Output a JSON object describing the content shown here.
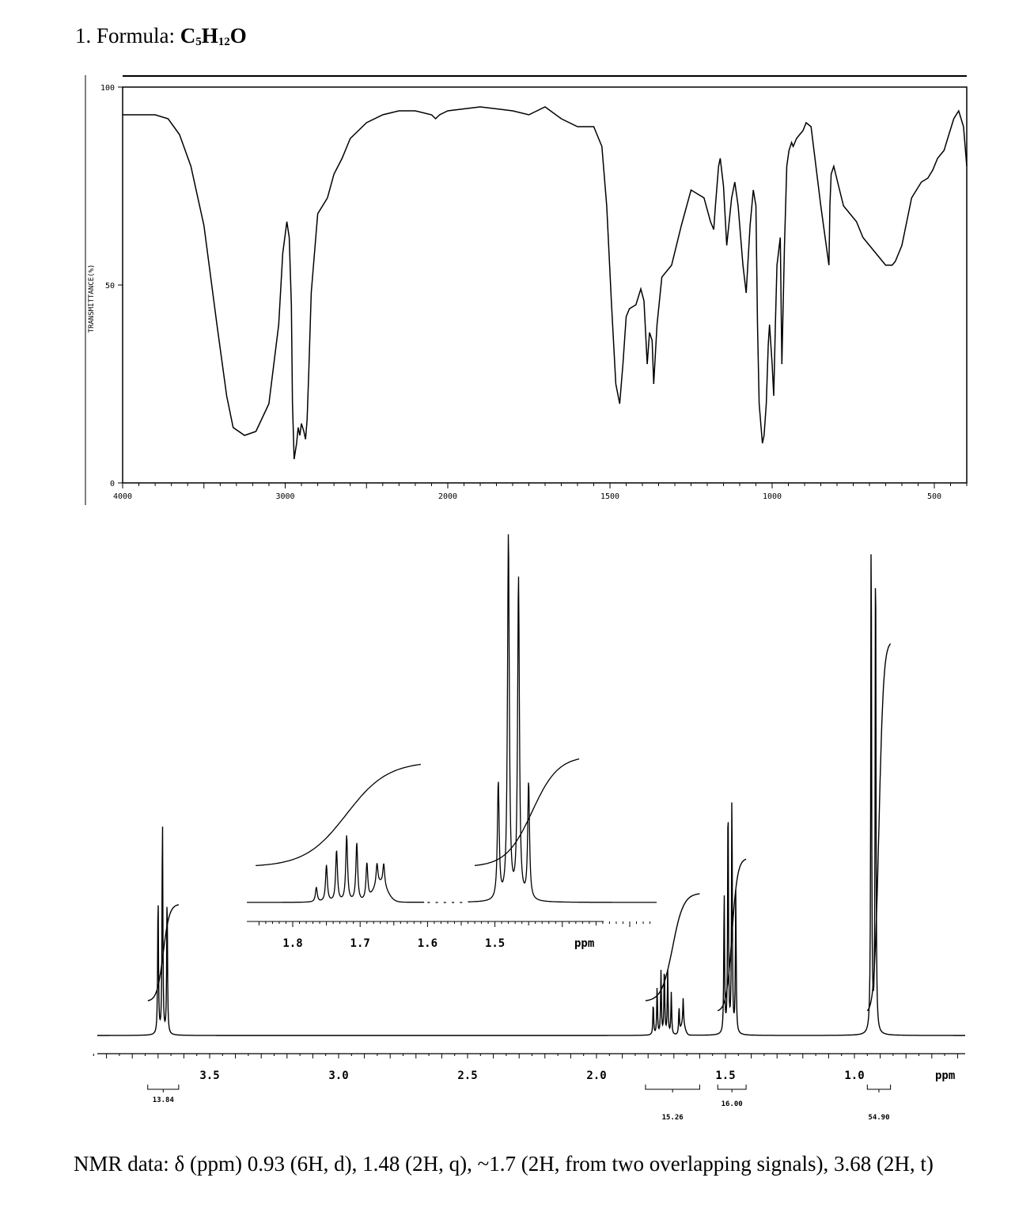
{
  "problem": {
    "title_prefix": "1. Formula: ",
    "formula": {
      "c": "C",
      "c_sub": "5",
      "h": "H",
      "h_sub": "12",
      "o": "O"
    }
  },
  "chart_data": [
    {
      "type": "line",
      "ylabel": "TRANSMITTANCE(%)",
      "xlabel": "",
      "x_direction": "decreasing",
      "xlim": [
        4000,
        400
      ],
      "ylim": [
        0,
        100
      ],
      "x_ticks": [
        4000,
        3000,
        2000,
        1500,
        1000,
        500
      ],
      "y_ticks": [
        100,
        50,
        0
      ],
      "x_tick_labels": [
        "4000",
        "3000",
        "2000",
        "1500",
        "1000",
        "500"
      ],
      "y_tick_labels": [
        "100",
        "50",
        "0"
      ],
      "series": [
        {
          "x": [
            4000,
            3900,
            3800,
            3720,
            3650,
            3580,
            3500,
            3420,
            3360,
            3320,
            3250,
            3180,
            3100,
            3040,
            3015,
            2990,
            2975,
            2962,
            2955,
            2945,
            2930,
            2920,
            2910,
            2900,
            2885,
            2875,
            2865,
            2855,
            2840,
            2800,
            2740,
            2700,
            2650,
            2600,
            2500,
            2400,
            2300,
            2200,
            2100,
            2075,
            2050,
            2000,
            1900,
            1800,
            1750,
            1700,
            1650,
            1600,
            1550,
            1525,
            1510,
            1495,
            1482,
            1470,
            1460,
            1450,
            1440,
            1420,
            1405,
            1395,
            1385,
            1378,
            1370,
            1365,
            1355,
            1340,
            1310,
            1280,
            1250,
            1230,
            1210,
            1190,
            1180,
            1175,
            1165,
            1160,
            1150,
            1140,
            1125,
            1115,
            1105,
            1090,
            1080,
            1068,
            1058,
            1050,
            1045,
            1040,
            1030,
            1025,
            1018,
            1012,
            1008,
            1000,
            995,
            990,
            985,
            975,
            970,
            962,
            955,
            948,
            940,
            935,
            925,
            915,
            905,
            895,
            880,
            850,
            825,
            822,
            818,
            810,
            795,
            780,
            760,
            740,
            720,
            700,
            680,
            660,
            650,
            640,
            630,
            620,
            600,
            570,
            540,
            520,
            505,
            490,
            470,
            455,
            440,
            425,
            410,
            400
          ],
          "y": [
            93,
            93,
            93,
            92,
            88,
            80,
            65,
            40,
            22,
            14,
            12,
            13,
            20,
            40,
            58,
            66,
            62,
            45,
            20,
            6,
            10,
            14,
            12,
            15,
            13,
            11,
            16,
            28,
            48,
            68,
            72,
            78,
            82,
            87,
            91,
            93,
            94,
            94,
            93,
            92,
            93,
            94,
            95,
            94,
            93,
            95,
            92,
            90,
            90,
            85,
            70,
            45,
            25,
            20,
            30,
            42,
            44,
            45,
            49,
            46,
            30,
            38,
            36,
            25,
            40,
            52,
            55,
            65,
            74,
            73,
            72,
            66,
            64,
            70,
            80,
            82,
            75,
            60,
            72,
            76,
            70,
            55,
            48,
            65,
            74,
            70,
            40,
            20,
            10,
            12,
            20,
            35,
            40,
            30,
            22,
            40,
            55,
            62,
            30,
            60,
            80,
            84,
            86,
            85,
            87,
            88,
            89,
            91,
            90,
            70,
            55,
            70,
            78,
            80,
            75,
            70,
            68,
            66,
            62,
            60,
            58,
            56,
            55,
            55,
            55,
            56,
            60,
            72,
            76,
            77,
            79,
            82,
            84,
            88,
            92,
            94,
            90,
            80
          ]
        }
      ]
    },
    {
      "type": "line",
      "xlabel": "ppm",
      "ylabel": "",
      "x_direction": "decreasing",
      "xlim": [
        3.95,
        0.6
      ],
      "x_ticks": [
        3.5,
        3.0,
        2.5,
        2.0,
        1.5,
        1.0
      ],
      "x_tick_labels": [
        "3.5",
        "3.0",
        "2.5",
        "2.0",
        "1.5",
        "1.0"
      ],
      "peaks": [
        {
          "ppm": 3.7,
          "rel_height": 0.27
        },
        {
          "ppm": 3.683,
          "rel_height": 0.42
        },
        {
          "ppm": 3.665,
          "rel_height": 0.27
        },
        {
          "ppm": 1.78,
          "rel_height": 0.06
        },
        {
          "ppm": 1.765,
          "rel_height": 0.09
        },
        {
          "ppm": 1.75,
          "rel_height": 0.12
        },
        {
          "ppm": 1.737,
          "rel_height": 0.13
        },
        {
          "ppm": 1.724,
          "rel_height": 0.12
        },
        {
          "ppm": 1.71,
          "rel_height": 0.08
        },
        {
          "ppm": 1.68,
          "rel_height": 0.05
        },
        {
          "ppm": 1.664,
          "rel_height": 0.05
        },
        {
          "ppm": 1.505,
          "rel_height": 0.27
        },
        {
          "ppm": 1.49,
          "rel_height": 0.46
        },
        {
          "ppm": 1.475,
          "rel_height": 0.46
        },
        {
          "ppm": 1.46,
          "rel_height": 0.27
        },
        {
          "ppm": 0.935,
          "rel_height": 1.0
        },
        {
          "ppm": 0.918,
          "rel_height": 0.97
        }
      ],
      "integrals": [
        {
          "label": "13.84",
          "from": 3.74,
          "to": 3.62
        },
        {
          "label": "15.26",
          "from": 1.81,
          "to": 1.6
        },
        {
          "label": "16.00",
          "from": 1.53,
          "to": 1.42
        },
        {
          "label": "54.90",
          "from": 0.95,
          "to": 0.86
        }
      ],
      "inset": {
        "xlim": [
          1.85,
          1.26
        ],
        "x_ticks": [
          1.8,
          1.7,
          1.6,
          1.5
        ],
        "x_tick_labels": [
          "1.8",
          "1.7",
          "1.6",
          "1.5"
        ],
        "xlabel": "ppm",
        "peaks": [
          {
            "ppm": 1.765,
            "rel_height": 0.04
          },
          {
            "ppm": 1.75,
            "rel_height": 0.1
          },
          {
            "ppm": 1.735,
            "rel_height": 0.14
          },
          {
            "ppm": 1.72,
            "rel_height": 0.18
          },
          {
            "ppm": 1.705,
            "rel_height": 0.16
          },
          {
            "ppm": 1.69,
            "rel_height": 0.1
          },
          {
            "ppm": 1.675,
            "rel_height": 0.06
          },
          {
            "ppm": 1.665,
            "rel_height": 0.06
          },
          {
            "ppm": 1.495,
            "rel_height": 0.32
          },
          {
            "ppm": 1.48,
            "rel_height": 1.0
          },
          {
            "ppm": 1.465,
            "rel_height": 0.88
          },
          {
            "ppm": 1.45,
            "rel_height": 0.32
          }
        ]
      }
    }
  ],
  "nmr_data": {
    "text": "NMR data: δ (ppm) 0.93 (6H, d), 1.48 (2H, q), ~1.7 (2H, from two overlapping signals), 3.68 (2H, t)"
  }
}
